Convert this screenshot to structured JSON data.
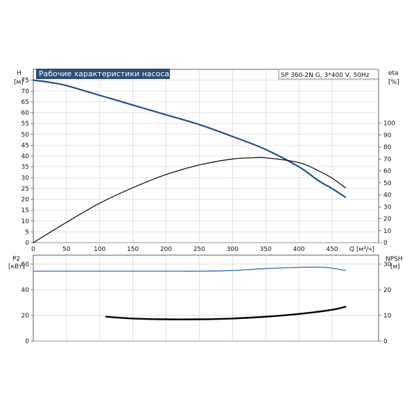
{
  "colors": {
    "grid": "#cccccc",
    "pump_curve": "#1f4e8c",
    "eff_curve": "#111111",
    "title_bg": "#2b4f75",
    "power_curve": "#2f6aad",
    "npsh_curve": "#000000"
  },
  "title": "Рабочие характеристики насоса",
  "model": "SP 360-2N G, 3*400 V, 50Hz",
  "chart_data": [
    {
      "type": "line",
      "name": "top",
      "left_axis": {
        "label": "H",
        "unit": "[м]",
        "ylim": [
          0,
          80
        ],
        "ticks": [
          0,
          5,
          10,
          15,
          20,
          25,
          30,
          35,
          40,
          45,
          50,
          55,
          60,
          65,
          70,
          75
        ]
      },
      "right_axis": {
        "label": "eta",
        "unit": "[%]",
        "ylim": [
          0,
          145
        ],
        "ticks": [
          0,
          10,
          20,
          30,
          40,
          50,
          60,
          70,
          80,
          90,
          100
        ]
      },
      "x_axis": {
        "label": "Q [м³/ч]",
        "xlim": [
          0,
          520
        ],
        "ticks": [
          0,
          50,
          100,
          150,
          200,
          250,
          300,
          350,
          400,
          450
        ]
      },
      "grid": true,
      "series": [
        {
          "axis": "left",
          "x": [
            0,
            25,
            50,
            100,
            150,
            200,
            250,
            300,
            350,
            400,
            430,
            450,
            470
          ],
          "y": [
            75,
            74,
            72.5,
            68,
            63.5,
            59,
            54.5,
            49,
            43,
            35,
            28.5,
            25,
            21
          ]
        },
        {
          "axis": "right",
          "x": [
            0,
            50,
            100,
            150,
            200,
            250,
            300,
            330,
            350,
            400,
            430,
            450,
            470
          ],
          "y": [
            0,
            17,
            33,
            46,
            57,
            65,
            70,
            71,
            71,
            67,
            60,
            54,
            46
          ]
        }
      ]
    },
    {
      "type": "line",
      "name": "bottom",
      "left_axis": {
        "label": "P2",
        "unit": "[кВт]",
        "ylim": [
          0,
          67
        ],
        "ticks": [
          0,
          20,
          40,
          60
        ]
      },
      "right_axis": {
        "label": "NPSH",
        "unit": "[м]",
        "ylim": [
          0,
          33.5
        ],
        "ticks": [
          0,
          10,
          20,
          30
        ]
      },
      "x_axis": {
        "xlim": [
          0,
          520
        ]
      },
      "grid": true,
      "series": [
        {
          "axis": "left",
          "x": [
            0,
            30,
            100,
            200,
            250,
            300,
            350,
            400,
            440,
            470
          ],
          "y": [
            54.5,
            54.5,
            54.5,
            54.5,
            54.5,
            55,
            56.5,
            57.5,
            57.5,
            55
          ]
        },
        {
          "axis": "right",
          "x": [
            110,
            150,
            200,
            250,
            300,
            350,
            400,
            450,
            470
          ],
          "y": [
            9.5,
            8.8,
            8.5,
            8.5,
            8.8,
            9.5,
            10.6,
            12.2,
            13.4
          ]
        }
      ]
    }
  ]
}
